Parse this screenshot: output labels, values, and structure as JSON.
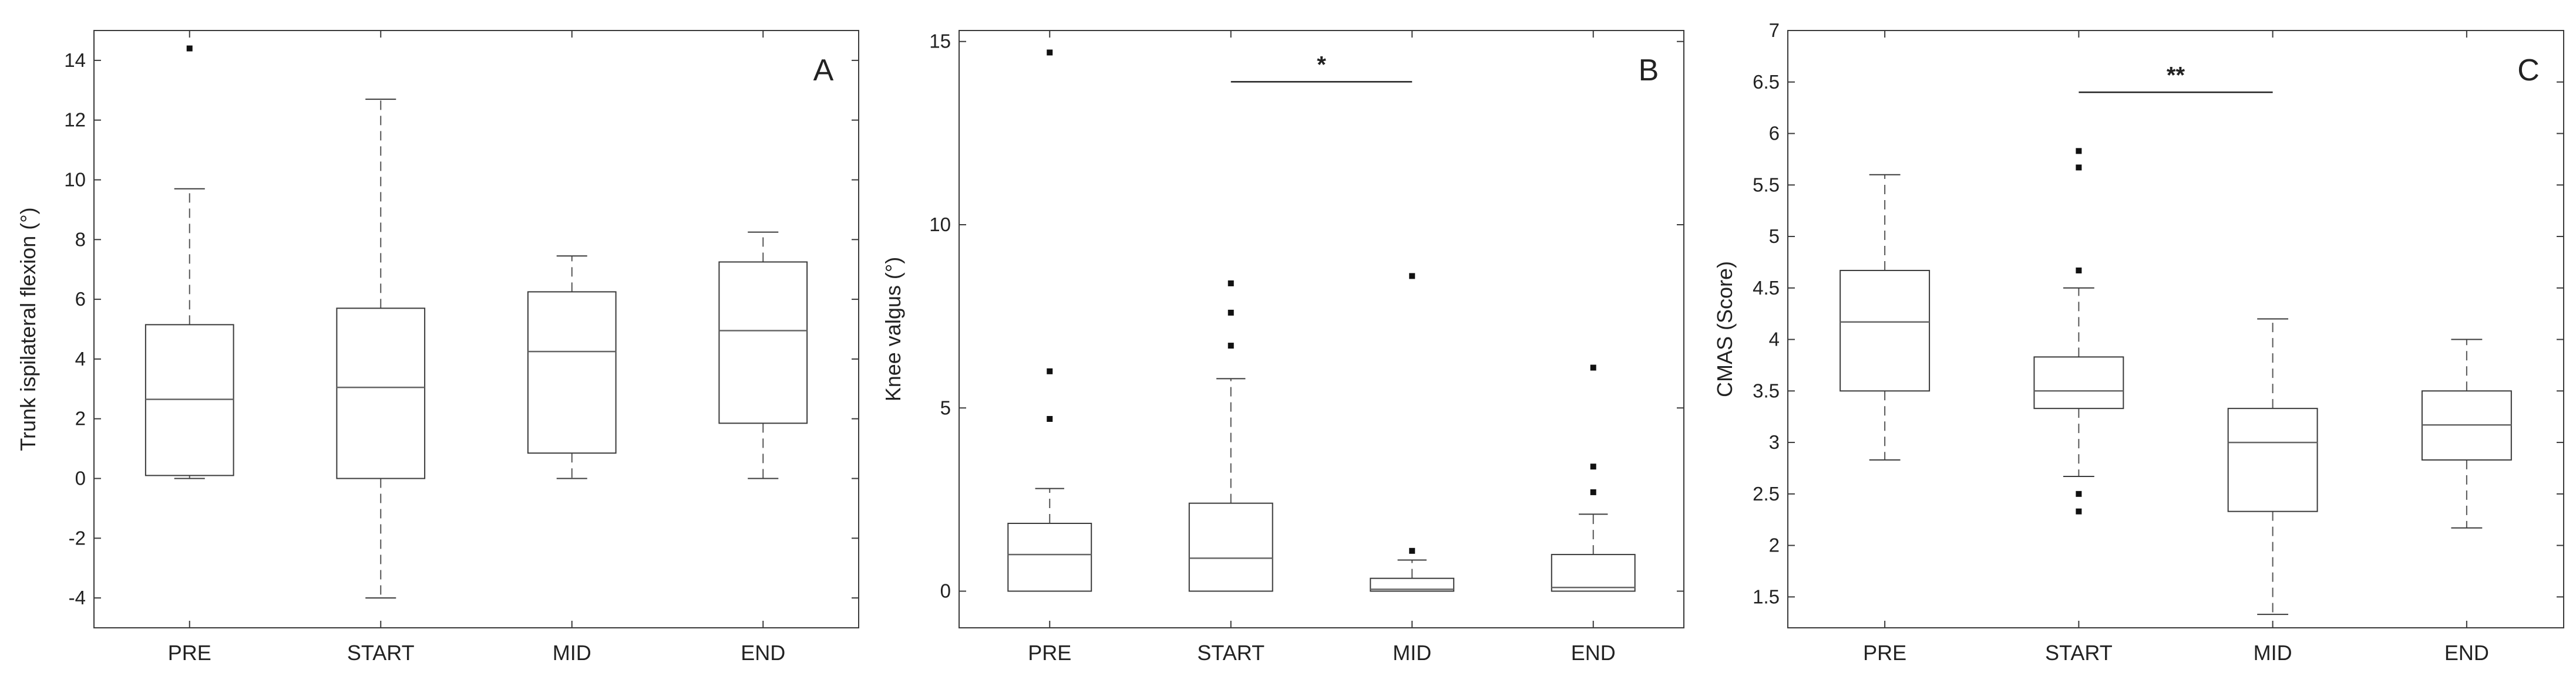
{
  "chart_data": [
    {
      "type": "box",
      "panel_label": "A",
      "ylabel": "Trunk ispilateral flexion (°)",
      "ylim": [
        -5,
        15
      ],
      "yticks": [
        -4,
        -2,
        0,
        2,
        4,
        6,
        8,
        10,
        12,
        14
      ],
      "categories": [
        "PRE",
        "START",
        "MID",
        "END"
      ],
      "boxes": [
        {
          "whisker_low": 0.0,
          "q1": 0.1,
          "median": 2.65,
          "q3": 5.15,
          "whisker_high": 9.7,
          "outliers": [
            14.4
          ]
        },
        {
          "whisker_low": -4.0,
          "q1": 0.0,
          "median": 3.05,
          "q3": 5.7,
          "whisker_high": 12.7,
          "outliers": []
        },
        {
          "whisker_low": 0.0,
          "q1": 0.85,
          "median": 4.25,
          "q3": 6.25,
          "whisker_high": 7.45,
          "outliers": []
        },
        {
          "whisker_low": 0.0,
          "q1": 1.85,
          "median": 4.95,
          "q3": 7.25,
          "whisker_high": 8.25,
          "outliers": []
        }
      ],
      "significance": []
    },
    {
      "type": "box",
      "panel_label": "B",
      "ylabel": "Knee valgus (°)",
      "ylim": [
        -1,
        15.3
      ],
      "yticks": [
        0,
        5,
        10,
        15
      ],
      "categories": [
        "PRE",
        "START",
        "MID",
        "END"
      ],
      "boxes": [
        {
          "whisker_low": 0.0,
          "q1": 0.0,
          "median": 1.0,
          "q3": 1.85,
          "whisker_high": 2.8,
          "outliers": [
            4.7,
            6.0,
            14.7
          ]
        },
        {
          "whisker_low": 0.0,
          "q1": 0.0,
          "median": 0.9,
          "q3": 2.4,
          "whisker_high": 5.8,
          "outliers": [
            6.7,
            7.6,
            8.4
          ]
        },
        {
          "whisker_low": 0.0,
          "q1": 0.0,
          "median": 0.05,
          "q3": 0.35,
          "whisker_high": 0.85,
          "outliers": [
            1.1,
            8.6
          ]
        },
        {
          "whisker_low": 0.0,
          "q1": 0.0,
          "median": 0.1,
          "q3": 1.0,
          "whisker_high": 2.1,
          "outliers": [
            2.7,
            3.4,
            6.1
          ]
        }
      ],
      "significance": [
        {
          "from": "START",
          "to": "MID",
          "y": 13.9,
          "label": "*"
        }
      ]
    },
    {
      "type": "box",
      "panel_label": "C",
      "ylabel": "CMAS (Score)",
      "ylim": [
        1.2,
        7
      ],
      "yticks": [
        1.5,
        2,
        2.5,
        3,
        3.5,
        4,
        4.5,
        5,
        5.5,
        6,
        6.5,
        7
      ],
      "categories": [
        "PRE",
        "START",
        "MID",
        "END"
      ],
      "boxes": [
        {
          "whisker_low": 2.83,
          "q1": 3.5,
          "median": 4.17,
          "q3": 4.67,
          "whisker_high": 5.6,
          "outliers": []
        },
        {
          "whisker_low": 2.67,
          "q1": 3.33,
          "median": 3.5,
          "q3": 3.83,
          "whisker_high": 4.5,
          "outliers": [
            2.33,
            2.5,
            4.67,
            5.67,
            5.83
          ]
        },
        {
          "whisker_low": 1.33,
          "q1": 2.33,
          "median": 3.0,
          "q3": 3.33,
          "whisker_high": 4.2,
          "outliers": []
        },
        {
          "whisker_low": 2.17,
          "q1": 2.83,
          "median": 3.17,
          "q3": 3.5,
          "whisker_high": 4.0,
          "outliers": []
        }
      ],
      "significance": [
        {
          "from": "START",
          "to": "MID",
          "y": 6.4,
          "label": "**"
        }
      ]
    }
  ]
}
